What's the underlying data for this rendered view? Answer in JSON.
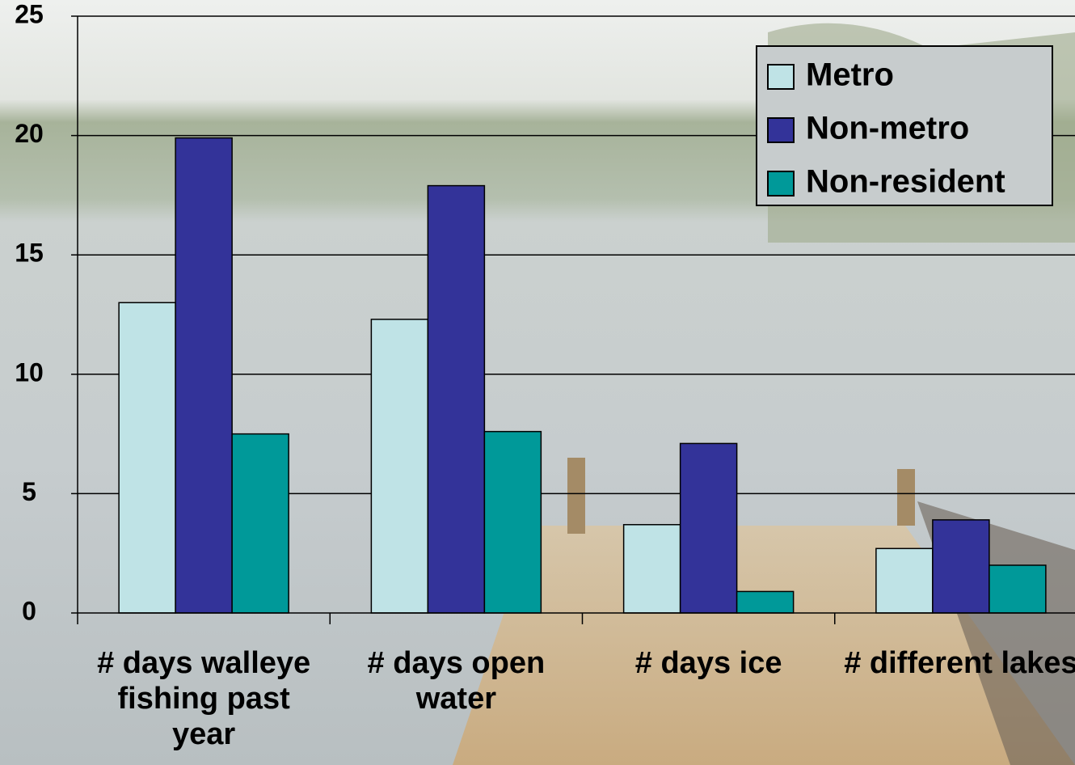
{
  "chart_data": {
    "type": "bar",
    "categories": [
      "# days walleye fishing past year",
      "# days open water",
      "# days ice",
      "# different lakes"
    ],
    "series": [
      {
        "name": "Metro",
        "color": "#bfe3e6",
        "values": [
          13.0,
          12.3,
          3.7,
          2.7
        ]
      },
      {
        "name": "Non-metro",
        "color": "#333399",
        "values": [
          19.9,
          17.9,
          7.1,
          3.9
        ]
      },
      {
        "name": "Non-resident",
        "color": "#009999",
        "values": [
          7.5,
          7.6,
          0.9,
          2.0
        ]
      }
    ],
    "ylim": [
      0,
      25
    ],
    "yticks": [
      0,
      5,
      10,
      15,
      20,
      25
    ],
    "grid": true,
    "legend": "top-right"
  }
}
